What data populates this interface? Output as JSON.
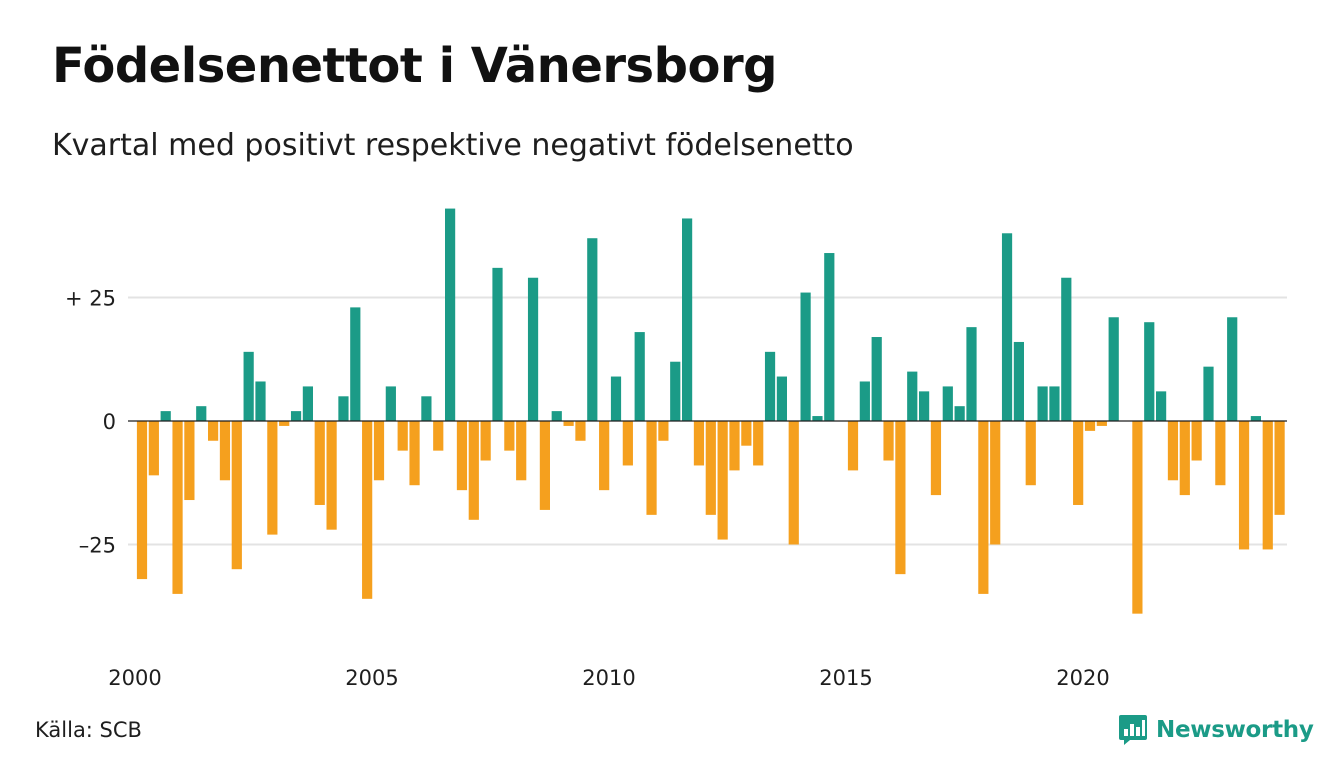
{
  "title": "Födelsenettot i Vänersborg",
  "subtitle": "Kvartal med positivt respektive negativt födelsenetto",
  "source": "Källa: SCB",
  "logo_text": "Newsworthy",
  "colors": {
    "positive": "#1b9b87",
    "negative": "#f5a01e",
    "grid": "#e3e3e3",
    "zero": "#1e1e1e"
  },
  "chart_data": {
    "type": "bar",
    "title": "Födelsenettot i Vänersborg",
    "subtitle": "Kvartal med positivt respektive negativt födelsenetto",
    "start": "2000 Q1",
    "frequency": "quarterly",
    "values": [
      -32,
      -11,
      2,
      -35,
      -16,
      3,
      -4,
      -12,
      -30,
      14,
      8,
      -23,
      -1,
      2,
      7,
      -17,
      -22,
      5,
      23,
      -36,
      -12,
      7,
      -6,
      -13,
      5,
      -6,
      43,
      -14,
      -20,
      -8,
      31,
      -6,
      -12,
      29,
      -18,
      2,
      -1,
      -4,
      37,
      -14,
      9,
      -9,
      18,
      -19,
      -4,
      12,
      41,
      -9,
      -19,
      -24,
      -10,
      -5,
      -9,
      14,
      9,
      -25,
      26,
      1,
      34,
      0,
      -10,
      8,
      17,
      -8,
      -31,
      10,
      6,
      -15,
      7,
      3,
      19,
      -35,
      -25,
      38,
      16,
      -13,
      7,
      7,
      29,
      -17,
      -2,
      -1,
      21,
      0,
      -39,
      20,
      6,
      -12,
      -15,
      -8,
      11,
      -13,
      21,
      -26,
      1,
      -26,
      -19
    ],
    "x_ticks": [
      "2000",
      "2005",
      "2010",
      "2015",
      "2020"
    ],
    "y_ticks": [
      {
        "value": 25,
        "label": "+ 25"
      },
      {
        "value": 0,
        "label": "0"
      },
      {
        "value": -25,
        "label": "–25"
      }
    ],
    "ylim": [
      -45,
      45
    ],
    "grid": true,
    "legend": "none"
  }
}
